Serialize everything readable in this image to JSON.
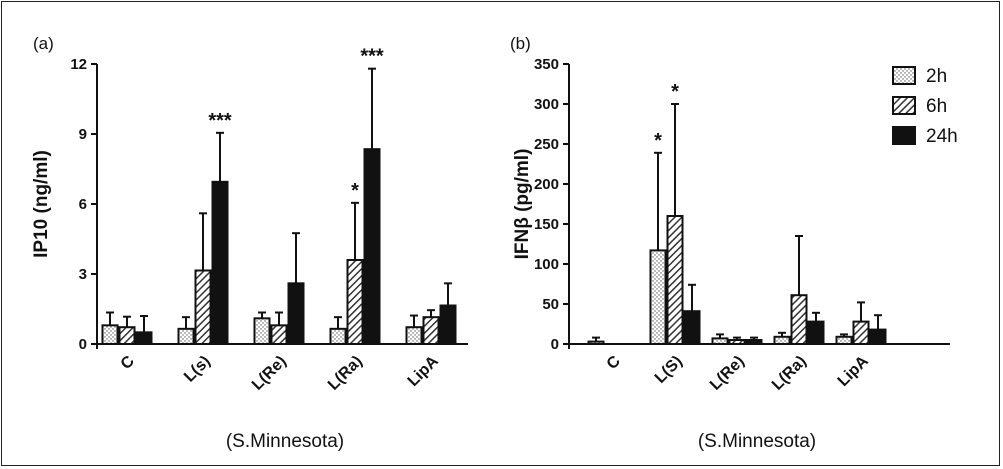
{
  "chart_data": [
    {
      "type": "bar",
      "panel_label": "(a)",
      "ylabel": "IP10 (ng/ml)",
      "xnote": "(S.Minnesota)",
      "categories": [
        "C",
        "L(s)",
        "L(Re)",
        "L(Ra)",
        "LipA"
      ],
      "ylim": [
        0,
        12
      ],
      "yticks": [
        "0",
        "3",
        "6",
        "9",
        "12"
      ],
      "series": [
        {
          "name": "2h",
          "values": [
            0.8,
            0.65,
            1.1,
            0.65,
            0.72
          ],
          "errors": [
            0.55,
            0.5,
            0.25,
            0.5,
            0.5
          ]
        },
        {
          "name": "6h",
          "values": [
            0.72,
            3.15,
            0.8,
            3.6,
            1.15
          ],
          "errors": [
            0.45,
            2.45,
            0.55,
            2.45,
            0.3
          ]
        },
        {
          "name": "24h",
          "values": [
            0.5,
            6.95,
            2.6,
            8.35,
            1.65
          ],
          "errors": [
            0.7,
            2.1,
            2.15,
            3.45,
            0.95
          ]
        }
      ],
      "annotations": [
        {
          "category": "L(s)",
          "series": "24h",
          "text": "***"
        },
        {
          "category": "L(Ra)",
          "series": "6h",
          "text": "*"
        },
        {
          "category": "L(Ra)",
          "series": "24h",
          "text": "***"
        }
      ]
    },
    {
      "type": "bar",
      "panel_label": "(b)",
      "ylabel": "IFNβ (pg/ml)",
      "xnote": "(S.Minnesota)",
      "categories": [
        "C",
        "L(S)",
        "L(Re)",
        "L(Ra)",
        "LipA"
      ],
      "ylim": [
        0,
        350
      ],
      "yticks": [
        "0",
        "50",
        "100",
        "150",
        "200",
        "250",
        "300",
        "350"
      ],
      "legend_position": "top-right",
      "series": [
        {
          "name": "2h",
          "values": [
            3,
            117,
            7,
            9,
            9
          ],
          "errors": [
            5,
            122,
            5,
            5,
            3
          ]
        },
        {
          "name": "6h",
          "values": [
            0,
            160,
            5,
            61,
            28
          ],
          "errors": [
            0,
            140,
            3,
            74,
            24
          ]
        },
        {
          "name": "24h",
          "values": [
            0,
            41,
            5,
            28,
            18
          ],
          "errors": [
            0,
            33,
            3,
            11,
            18
          ]
        }
      ],
      "annotations": [
        {
          "category": "L(S)",
          "series": "2h",
          "text": "*"
        },
        {
          "category": "L(S)",
          "series": "6h",
          "text": "*"
        }
      ]
    }
  ]
}
